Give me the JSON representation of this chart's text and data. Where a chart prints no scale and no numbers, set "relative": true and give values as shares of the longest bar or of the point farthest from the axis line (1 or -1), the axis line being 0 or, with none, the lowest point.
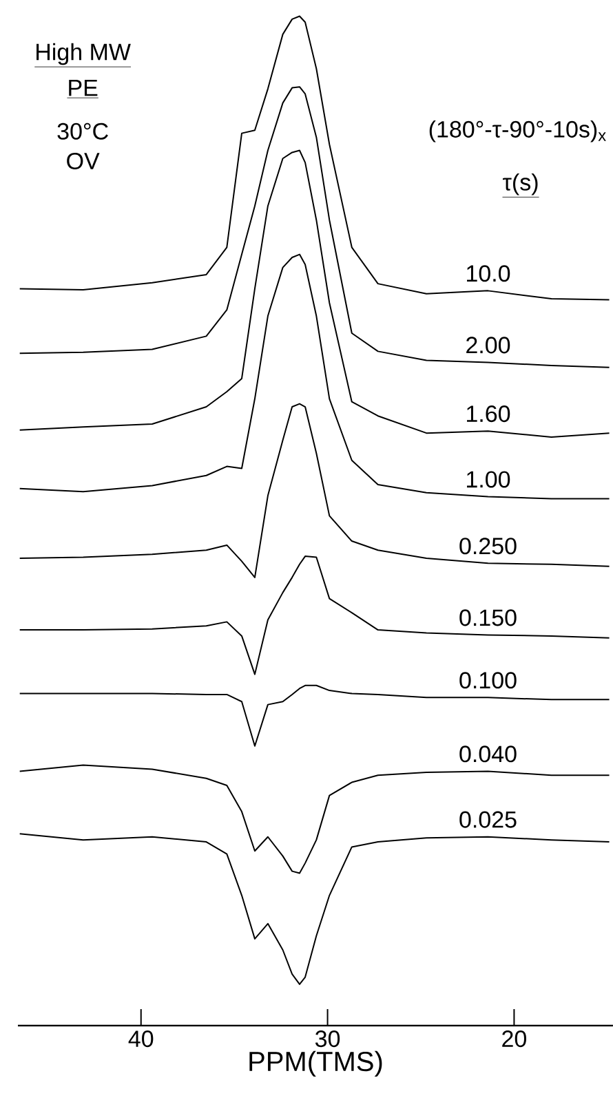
{
  "chart_data": {
    "type": "line",
    "relative": true,
    "xlabel": "PPM(TMS)",
    "legend_title": "τ(s)",
    "annotations": [
      "High MW",
      "PE",
      "30°C",
      "OV",
      "(180°-τ-90°-10s)$_{x}$"
    ],
    "xlim": [
      46.6,
      14.7
    ],
    "xticks": [
      40,
      30,
      20
    ],
    "x": [
      46.5,
      43.1,
      39.4,
      36.5,
      35.4,
      34.6,
      33.9,
      33.2,
      32.4,
      31.9,
      31.5,
      31.2,
      30.6,
      29.9,
      28.7,
      27.3,
      24.7,
      21.4,
      18.0,
      14.9
    ],
    "series": [
      {
        "name": "10.0",
        "color": "#000000",
        "values": [
          0.73,
          0.729,
          0.736,
          0.744,
          0.771,
          0.884,
          0.887,
          0.928,
          0.982,
          0.997,
          1.0,
          0.994,
          0.948,
          0.873,
          0.771,
          0.735,
          0.725,
          0.728,
          0.72,
          0.719
        ]
      },
      {
        "name": "2.00",
        "color": "#000000",
        "values": [
          0.666,
          0.667,
          0.67,
          0.683,
          0.709,
          0.764,
          0.812,
          0.867,
          0.914,
          0.929,
          0.93,
          0.923,
          0.88,
          0.798,
          0.686,
          0.668,
          0.659,
          0.657,
          0.654,
          0.652
        ]
      },
      {
        "name": "1.60",
        "color": "#000000",
        "values": [
          0.59,
          0.593,
          0.596,
          0.613,
          0.628,
          0.641,
          0.73,
          0.812,
          0.859,
          0.865,
          0.867,
          0.855,
          0.798,
          0.716,
          0.618,
          0.604,
          0.587,
          0.589,
          0.583,
          0.587
        ]
      },
      {
        "name": "1.00",
        "color": "#000000",
        "values": [
          0.532,
          0.529,
          0.535,
          0.545,
          0.554,
          0.552,
          0.621,
          0.703,
          0.751,
          0.761,
          0.764,
          0.754,
          0.703,
          0.621,
          0.56,
          0.536,
          0.528,
          0.524,
          0.522,
          0.522
        ]
      },
      {
        "name": "0.250",
        "color": "#000000",
        "values": [
          0.463,
          0.464,
          0.467,
          0.471,
          0.476,
          0.46,
          0.444,
          0.525,
          0.58,
          0.613,
          0.616,
          0.613,
          0.567,
          0.505,
          0.48,
          0.471,
          0.463,
          0.458,
          0.457,
          0.455
        ]
      },
      {
        "name": "0.150",
        "color": "#000000",
        "values": [
          0.392,
          0.392,
          0.393,
          0.396,
          0.4,
          0.386,
          0.348,
          0.402,
          0.429,
          0.444,
          0.457,
          0.465,
          0.464,
          0.423,
          0.409,
          0.392,
          0.389,
          0.387,
          0.386,
          0.384
        ]
      },
      {
        "name": "0.100",
        "color": "#000000",
        "values": [
          0.329,
          0.329,
          0.329,
          0.328,
          0.328,
          0.321,
          0.277,
          0.318,
          0.321,
          0.328,
          0.334,
          0.337,
          0.337,
          0.332,
          0.329,
          0.328,
          0.325,
          0.325,
          0.323,
          0.323
        ]
      },
      {
        "name": "0.040",
        "color": "#000000",
        "values": [
          0.252,
          0.258,
          0.254,
          0.245,
          0.238,
          0.212,
          0.173,
          0.187,
          0.168,
          0.153,
          0.151,
          0.161,
          0.184,
          0.228,
          0.241,
          0.248,
          0.251,
          0.252,
          0.248,
          0.248
        ]
      },
      {
        "name": "0.025",
        "color": "#000000",
        "values": [
          0.19,
          0.184,
          0.187,
          0.182,
          0.17,
          0.129,
          0.086,
          0.101,
          0.075,
          0.051,
          0.041,
          0.048,
          0.089,
          0.129,
          0.177,
          0.182,
          0.186,
          0.187,
          0.184,
          0.182
        ]
      }
    ]
  }
}
